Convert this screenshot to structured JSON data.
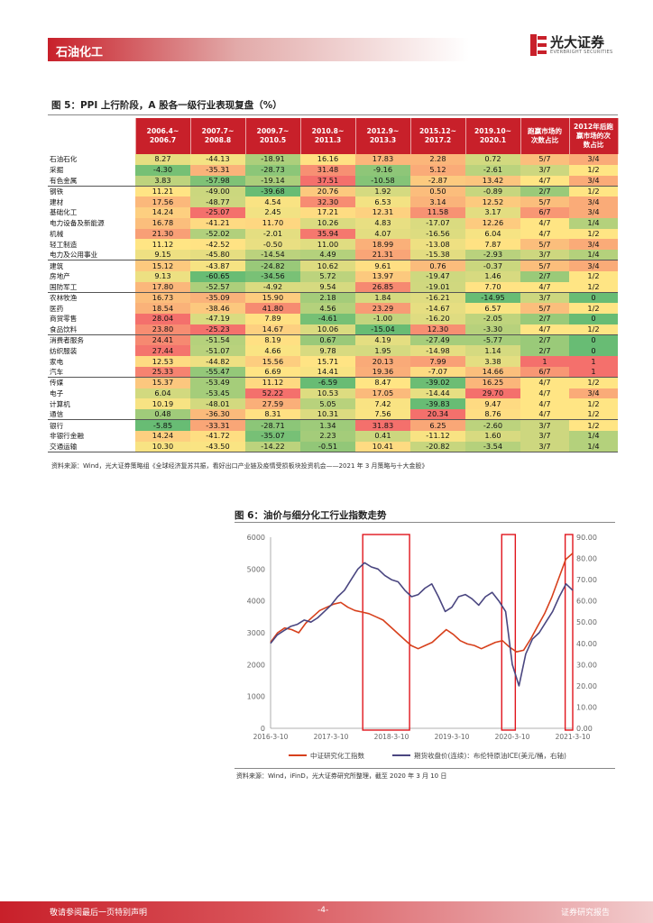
{
  "header": {
    "section": "石油化工",
    "logo_name": "光大证券",
    "logo_sub": "EVERBRIGHT SECURITIES"
  },
  "figure5": {
    "title": "图 5：PPI 上行阶段，A 股各一级行业表现复盘（%）",
    "columns": [
      "2006.4~\n2006.7",
      "2007.7~\n2008.8",
      "2009.7~\n2010.5",
      "2010.8~\n2011.3",
      "2012.9~\n2013.3",
      "2015.12~\n2017.2",
      "2019.10~\n2020.1",
      "跑赢市场的\n次数占比",
      "2012年后跑\n赢市场的次\n数占比"
    ],
    "rows": [
      {
        "name": "石油石化",
        "v": [
          "8.27",
          "-44.13",
          "-18.91",
          "16.16",
          "17.83",
          "2.28",
          "0.72"
        ],
        "r": "5/7",
        "r2": "3/4"
      },
      {
        "name": "采掘",
        "v": [
          "-4.30",
          "-35.31",
          "-28.73",
          "31.48",
          "-9.16",
          "5.12",
          "-2.61"
        ],
        "r": "3/7",
        "r2": "1/2"
      },
      {
        "name": "有色金属",
        "v": [
          "3.83",
          "-57.98",
          "-19.14",
          "37.51",
          "-10.58",
          "-2.87",
          "13.42"
        ],
        "r": "4/7",
        "r2": "3/4"
      },
      {
        "name": "钢铁",
        "v": [
          "11.21",
          "-49.00",
          "-39.68",
          "20.76",
          "1.92",
          "0.50",
          "-0.89"
        ],
        "r": "2/7",
        "r2": "1/2"
      },
      {
        "name": "建材",
        "v": [
          "17.56",
          "-48.77",
          "4.54",
          "32.30",
          "6.53",
          "3.14",
          "12.52"
        ],
        "r": "5/7",
        "r2": "3/4"
      },
      {
        "name": "基础化工",
        "v": [
          "14.24",
          "-25.07",
          "2.45",
          "17.21",
          "12.31",
          "11.58",
          "3.17"
        ],
        "r": "6/7",
        "r2": "3/4"
      },
      {
        "name": "电力设备及新能源",
        "v": [
          "16.78",
          "-41.21",
          "11.70",
          "10.26",
          "4.83",
          "-17.07",
          "12.26"
        ],
        "r": "4/7",
        "r2": "1/4"
      },
      {
        "name": "机械",
        "v": [
          "21.30",
          "-52.02",
          "-2.01",
          "35.94",
          "4.07",
          "-16.56",
          "6.04"
        ],
        "r": "4/7",
        "r2": "1/2"
      },
      {
        "name": "轻工制造",
        "v": [
          "11.12",
          "-42.52",
          "-0.50",
          "11.00",
          "18.99",
          "-13.08",
          "7.87"
        ],
        "r": "5/7",
        "r2": "3/4"
      },
      {
        "name": "电力及公用事业",
        "v": [
          "9.15",
          "-45.80",
          "-14.54",
          "4.49",
          "21.31",
          "-15.38",
          "-2.93"
        ],
        "r": "3/7",
        "r2": "1/4"
      },
      {
        "name": "建筑",
        "v": [
          "15.12",
          "-43.87",
          "-24.82",
          "10.62",
          "9.61",
          "0.76",
          "-0.37"
        ],
        "r": "5/7",
        "r2": "3/4"
      },
      {
        "name": "房地产",
        "v": [
          "9.13",
          "-60.65",
          "-34.56",
          "5.72",
          "13.97",
          "-19.47",
          "1.46"
        ],
        "r": "2/7",
        "r2": "1/2"
      },
      {
        "name": "国防军工",
        "v": [
          "17.80",
          "-52.57",
          "-4.92",
          "9.54",
          "26.85",
          "-19.01",
          "7.70"
        ],
        "r": "4/7",
        "r2": "1/2"
      },
      {
        "name": "农林牧渔",
        "v": [
          "16.73",
          "-35.09",
          "15.90",
          "2.18",
          "1.84",
          "-16.21",
          "-14.95"
        ],
        "r": "3/7",
        "r2": "0"
      },
      {
        "name": "医药",
        "v": [
          "18.54",
          "-38.46",
          "41.80",
          "4.56",
          "23.29",
          "-14.67",
          "6.57"
        ],
        "r": "5/7",
        "r2": "1/2"
      },
      {
        "name": "商贸零售",
        "v": [
          "28.04",
          "-47.19",
          "7.89",
          "-4.61",
          "-1.00",
          "-16.20",
          "-2.05"
        ],
        "r": "2/7",
        "r2": "0"
      },
      {
        "name": "食品饮料",
        "v": [
          "23.80",
          "-25.23",
          "14.67",
          "10.06",
          "-15.04",
          "12.30",
          "-3.30"
        ],
        "r": "4/7",
        "r2": "1/2"
      },
      {
        "name": "消费者服务",
        "v": [
          "24.41",
          "-51.54",
          "8.19",
          "0.67",
          "4.19",
          "-27.49",
          "-5.77"
        ],
        "r": "2/7",
        "r2": "0"
      },
      {
        "name": "纺织服装",
        "v": [
          "27.44",
          "-51.07",
          "4.66",
          "9.78",
          "1.95",
          "-14.98",
          "1.14"
        ],
        "r": "2/7",
        "r2": "0"
      },
      {
        "name": "家电",
        "v": [
          "12.53",
          "-44.82",
          "15.56",
          "15.71",
          "20.13",
          "7.99",
          "3.38"
        ],
        "r": "1",
        "r2": "1"
      },
      {
        "name": "汽车",
        "v": [
          "25.33",
          "-55.47",
          "6.69",
          "14.41",
          "19.36",
          "-7.07",
          "14.66"
        ],
        "r": "6/7",
        "r2": "1"
      },
      {
        "name": "传媒",
        "v": [
          "15.37",
          "-53.49",
          "11.12",
          "-6.59",
          "8.47",
          "-39.02",
          "16.25"
        ],
        "r": "4/7",
        "r2": "1/2"
      },
      {
        "name": "电子",
        "v": [
          "6.04",
          "-53.45",
          "52.22",
          "10.53",
          "17.05",
          "-14.44",
          "29.70"
        ],
        "r": "4/7",
        "r2": "3/4"
      },
      {
        "name": "计算机",
        "v": [
          "10.19",
          "-48.01",
          "27.59",
          "5.05",
          "7.42",
          "-39.83",
          "9.47"
        ],
        "r": "4/7",
        "r2": "1/2"
      },
      {
        "name": "通信",
        "v": [
          "0.48",
          "-36.30",
          "8.31",
          "10.31",
          "7.56",
          "20.34",
          "8.76"
        ],
        "r": "4/7",
        "r2": "1/2"
      },
      {
        "name": "银行",
        "v": [
          "-5.85",
          "-33.31",
          "-28.71",
          "1.34",
          "31.83",
          "6.25",
          "-2.60"
        ],
        "r": "3/7",
        "r2": "1/2"
      },
      {
        "name": "非银行金融",
        "v": [
          "14.24",
          "-41.72",
          "-35.07",
          "2.23",
          "0.41",
          "-11.12",
          "1.60"
        ],
        "r": "3/7",
        "r2": "1/4"
      },
      {
        "name": "交通运输",
        "v": [
          "10.30",
          "-43.50",
          "-14.22",
          "-0.51",
          "10.41",
          "-20.82",
          "-3.54"
        ],
        "r": "3/7",
        "r2": "1/4"
      }
    ],
    "group_starts": [
      3,
      10,
      13,
      17,
      21,
      25
    ],
    "source": "资料来源：Wind，光大证券策略组《全球经济复苏共振，看好出口产业链及疫情受损板块投资机会——2021 年 3 月策略与十大金股》"
  },
  "figure6": {
    "title": "图 6：油价与细分化工行业指数走势",
    "source": "资料来源：Wind，iFinD，光大证券研究所整理，截至 2020 年 3 月 10 日"
  },
  "chart_data": {
    "type": "line",
    "title": "图 6：油价与细分化工行业指数走势",
    "x_ticks": [
      "2016-3-10",
      "2017-3-10",
      "2018-3-10",
      "2019-3-10",
      "2020-3-10",
      "2021-3-10"
    ],
    "ylim_left": [
      0,
      6000
    ],
    "yticks_left": [
      "0",
      "1000",
      "2000",
      "3000",
      "4000",
      "5000",
      "6000"
    ],
    "ylim_right": [
      0,
      90
    ],
    "yticks_right": [
      "0.00",
      "10.00",
      "20.00",
      "30.00",
      "40.00",
      "50.00",
      "60.00",
      "70.00",
      "80.00",
      "90.00"
    ],
    "series": [
      {
        "name": "中证研究化工指数",
        "axis": "left",
        "color": "#d7401c",
        "values": [
          2700,
          3000,
          3150,
          3100,
          3000,
          3300,
          3500,
          3700,
          3800,
          3900,
          3950,
          3800,
          3700,
          3650,
          3600,
          3500,
          3400,
          3200,
          3000,
          2800,
          2600,
          2500,
          2600,
          2700,
          2900,
          3100,
          2950,
          2750,
          2650,
          2600,
          2500,
          2600,
          2700,
          2750,
          2550,
          2400,
          2450,
          2800,
          3200,
          3600,
          4100,
          4700,
          5300,
          5500
        ]
      },
      {
        "name": "期货收盘价(连续)：布伦特原油ICE(美元/桶，右轴)",
        "axis": "right",
        "color": "#4a4680",
        "values": [
          40,
          44,
          46,
          48,
          49,
          51,
          50,
          52,
          55,
          58,
          62,
          65,
          70,
          75,
          78,
          76,
          75,
          72,
          70,
          69,
          65,
          62,
          63,
          66,
          68,
          62,
          55,
          57,
          62,
          63,
          61,
          58,
          62,
          64,
          60,
          55,
          30,
          20,
          35,
          42,
          45,
          50,
          55,
          62,
          68,
          65
        ]
      }
    ],
    "legend": [
      "中证研究化工指数",
      "期货收盘价(连续)：布伦特原油ICE(美元/桶，右轴)"
    ],
    "highlight_boxes": [
      "2018 上行段",
      "2020 区间",
      "2021 区间"
    ]
  },
  "footer": {
    "left": "敬请参阅最后一页特别声明",
    "center": "-4-",
    "right": "证券研究报告"
  }
}
